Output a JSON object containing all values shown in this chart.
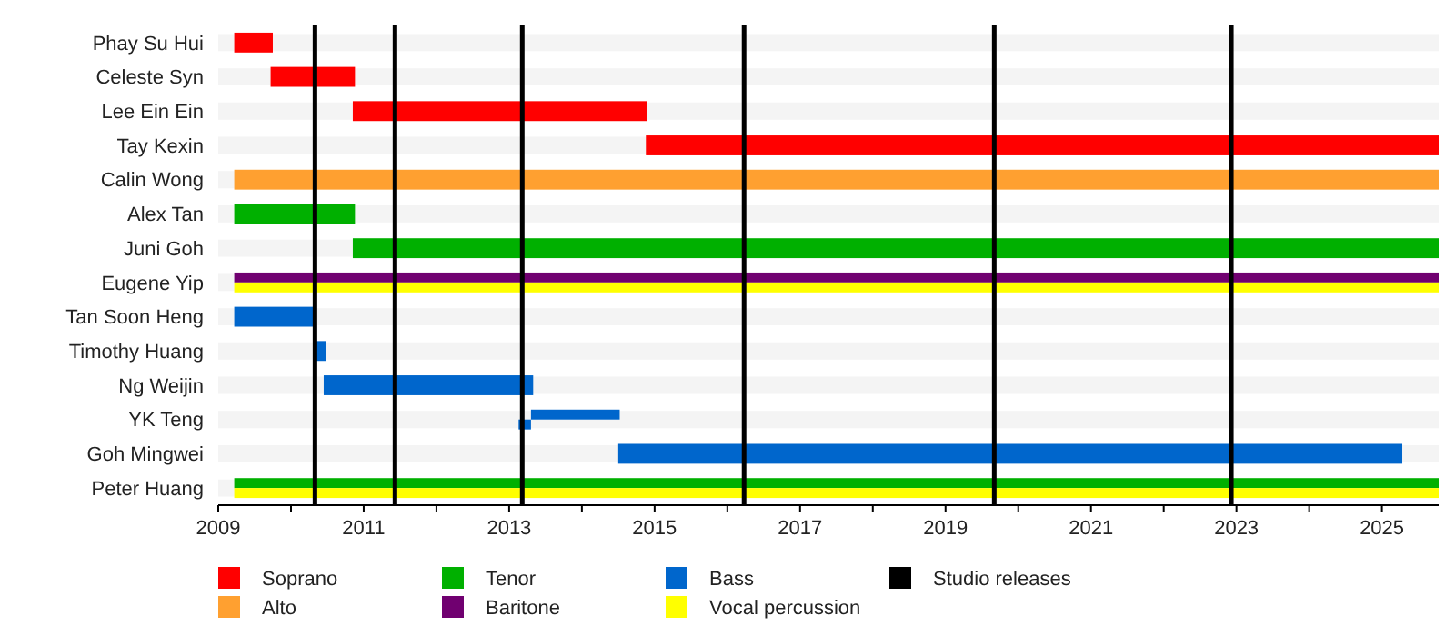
{
  "chart_data": {
    "type": "bar",
    "orientation": "horizontal",
    "categories": [
      "Phay Su Hui",
      "Celeste Syn",
      "Lee Ein Ein",
      "Tay Kexin",
      "Calin Wong",
      "Alex Tan",
      "Juni Goh",
      "Eugene Yip",
      "Tan Soon Heng",
      "Timothy Huang",
      "Ng Weijin",
      "YK Teng",
      "Goh Mingwei",
      "Peter Huang"
    ],
    "series": [
      {
        "name": "Soprano",
        "color": "#ff0000",
        "base": [
          2009.22,
          2009.72,
          2010.85,
          2014.88,
          null,
          null,
          null,
          null,
          null,
          null,
          null,
          null,
          null,
          null
        ],
        "values": [
          0.53,
          1.16,
          4.05,
          10.9,
          null,
          null,
          null,
          null,
          null,
          null,
          null,
          null,
          null,
          null
        ]
      },
      {
        "name": "Alto",
        "color": "#ffa030",
        "base": [
          null,
          null,
          null,
          null,
          2009.22,
          null,
          null,
          null,
          null,
          null,
          null,
          null,
          null,
          null
        ],
        "values": [
          null,
          null,
          null,
          null,
          16.56,
          null,
          null,
          null,
          null,
          null,
          null,
          null,
          null,
          null
        ]
      },
      {
        "name": "Tenor",
        "color": "#00b000",
        "base": [
          null,
          null,
          null,
          null,
          null,
          2009.22,
          2010.85,
          null,
          null,
          null,
          null,
          null,
          null,
          2009.22
        ],
        "values": [
          null,
          null,
          null,
          null,
          null,
          1.66,
          14.93,
          null,
          null,
          null,
          null,
          null,
          null,
          16.56
        ]
      },
      {
        "name": "Baritone",
        "color": "#700070",
        "base": [
          null,
          null,
          null,
          null,
          null,
          null,
          null,
          2009.22,
          null,
          null,
          null,
          null,
          null,
          null
        ],
        "values": [
          null,
          null,
          null,
          null,
          null,
          null,
          null,
          16.56,
          null,
          null,
          null,
          null,
          null,
          null
        ]
      },
      {
        "name": "Bass",
        "color": "#0066cc",
        "base": [
          null,
          null,
          null,
          null,
          null,
          null,
          null,
          null,
          2009.22,
          2010.33,
          2010.45,
          2013.3,
          2014.5,
          null
        ],
        "values": [
          null,
          null,
          null,
          null,
          null,
          null,
          null,
          null,
          1.13,
          0.15,
          2.88,
          1.22,
          10.78,
          null
        ]
      },
      {
        "color": "#0066cc",
        "base": [
          null,
          null,
          null,
          null,
          null,
          null,
          null,
          null,
          null,
          null,
          null,
          2013.13,
          null,
          null
        ],
        "values": [
          null,
          null,
          null,
          null,
          null,
          null,
          null,
          null,
          null,
          null,
          null,
          0.17,
          null,
          null
        ]
      },
      {
        "name": "Vocal percussion",
        "color": "#ffff00",
        "base": [
          null,
          null,
          null,
          null,
          null,
          null,
          null,
          2009.22,
          null,
          null,
          null,
          null,
          null,
          2009.22
        ],
        "values": [
          null,
          null,
          null,
          null,
          null,
          null,
          null,
          16.56,
          null,
          null,
          null,
          null,
          null,
          16.56
        ]
      }
    ],
    "xlim": [
      2009,
      2025.78
    ],
    "xticks": [
      2009,
      {
        "value": 2010,
        "label": null
      },
      2011,
      {
        "value": 2012,
        "label": null
      },
      2013,
      {
        "value": 2014,
        "label": null
      },
      2015,
      {
        "value": 2016,
        "label": null
      },
      2017,
      {
        "value": 2018,
        "label": null
      },
      2019,
      {
        "value": 2020,
        "label": null
      },
      2021,
      {
        "value": 2022,
        "label": null
      },
      2023,
      {
        "value": 2024,
        "label": null
      },
      2025
    ],
    "ref_lines": [
      {
        "axis": "x",
        "value": 2010.33,
        "label": "Studio releases",
        "color": "#000000"
      },
      {
        "axis": "x",
        "value": 2011.43,
        "color": "#000000"
      },
      {
        "axis": "x",
        "value": 2013.18,
        "color": "#000000"
      },
      {
        "axis": "x",
        "value": 2016.23,
        "color": "#000000"
      },
      {
        "axis": "x",
        "value": 2019.67,
        "color": "#000000"
      },
      {
        "axis": "x",
        "value": 2022.93,
        "color": "#000000"
      }
    ],
    "grid": "y",
    "legend": "bottom"
  }
}
